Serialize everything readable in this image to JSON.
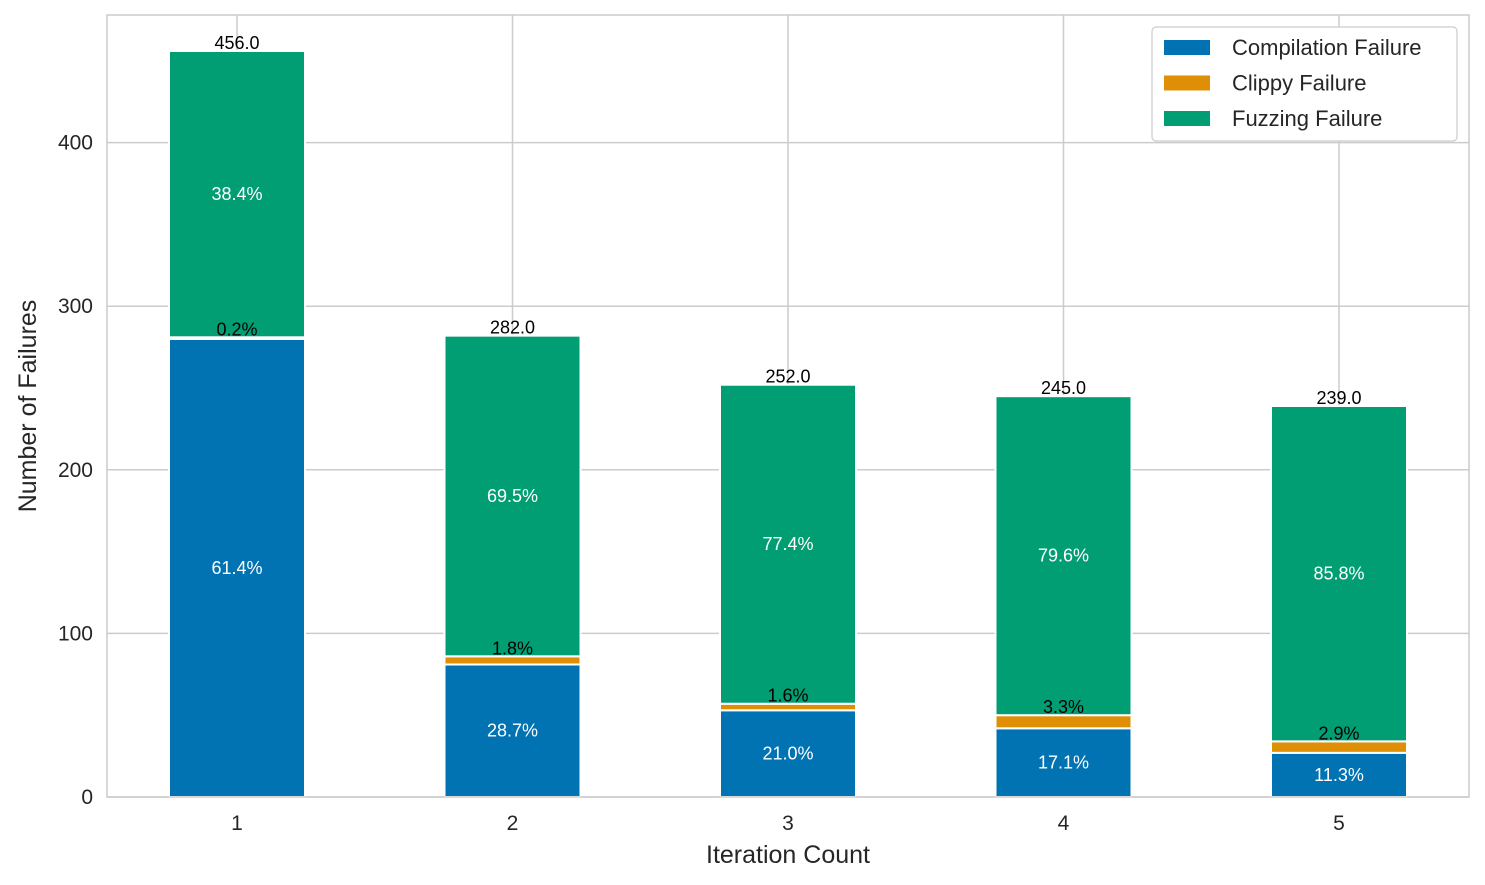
{
  "chart_data": {
    "type": "bar",
    "stacked": true,
    "categories": [
      "1",
      "2",
      "3",
      "4",
      "5"
    ],
    "series": [
      {
        "name": "Compilation Failure",
        "color": "#0173b2",
        "values": [
          280,
          81,
          53,
          42,
          27
        ],
        "labels": [
          "61.4%",
          "28.7%",
          "21.0%",
          "17.1%",
          "11.3%"
        ]
      },
      {
        "name": "Clippy Failure",
        "color": "#de8f05",
        "values": [
          1,
          5,
          4,
          8,
          7
        ],
        "labels": [
          "0.2%",
          "1.8%",
          "1.6%",
          "3.3%",
          "2.9%"
        ]
      },
      {
        "name": "Fuzzing Failure",
        "color": "#029e73",
        "values": [
          175,
          196,
          195,
          195,
          205
        ],
        "labels": [
          "38.4%",
          "69.5%",
          "77.4%",
          "79.6%",
          "85.8%"
        ]
      }
    ],
    "totals": [
      456,
      282,
      252,
      245,
      239
    ],
    "total_labels": [
      "456.0",
      "282.0",
      "252.0",
      "245.0",
      "239.0"
    ],
    "xlabel": "Iteration Count",
    "ylabel": "Number of Failures",
    "ylim": [
      0,
      478
    ],
    "yticks": [
      "0",
      "100",
      "200",
      "300",
      "400"
    ],
    "ytick_values": [
      0,
      100,
      200,
      300,
      400
    ],
    "grid": true,
    "legend_position": "top-right"
  }
}
